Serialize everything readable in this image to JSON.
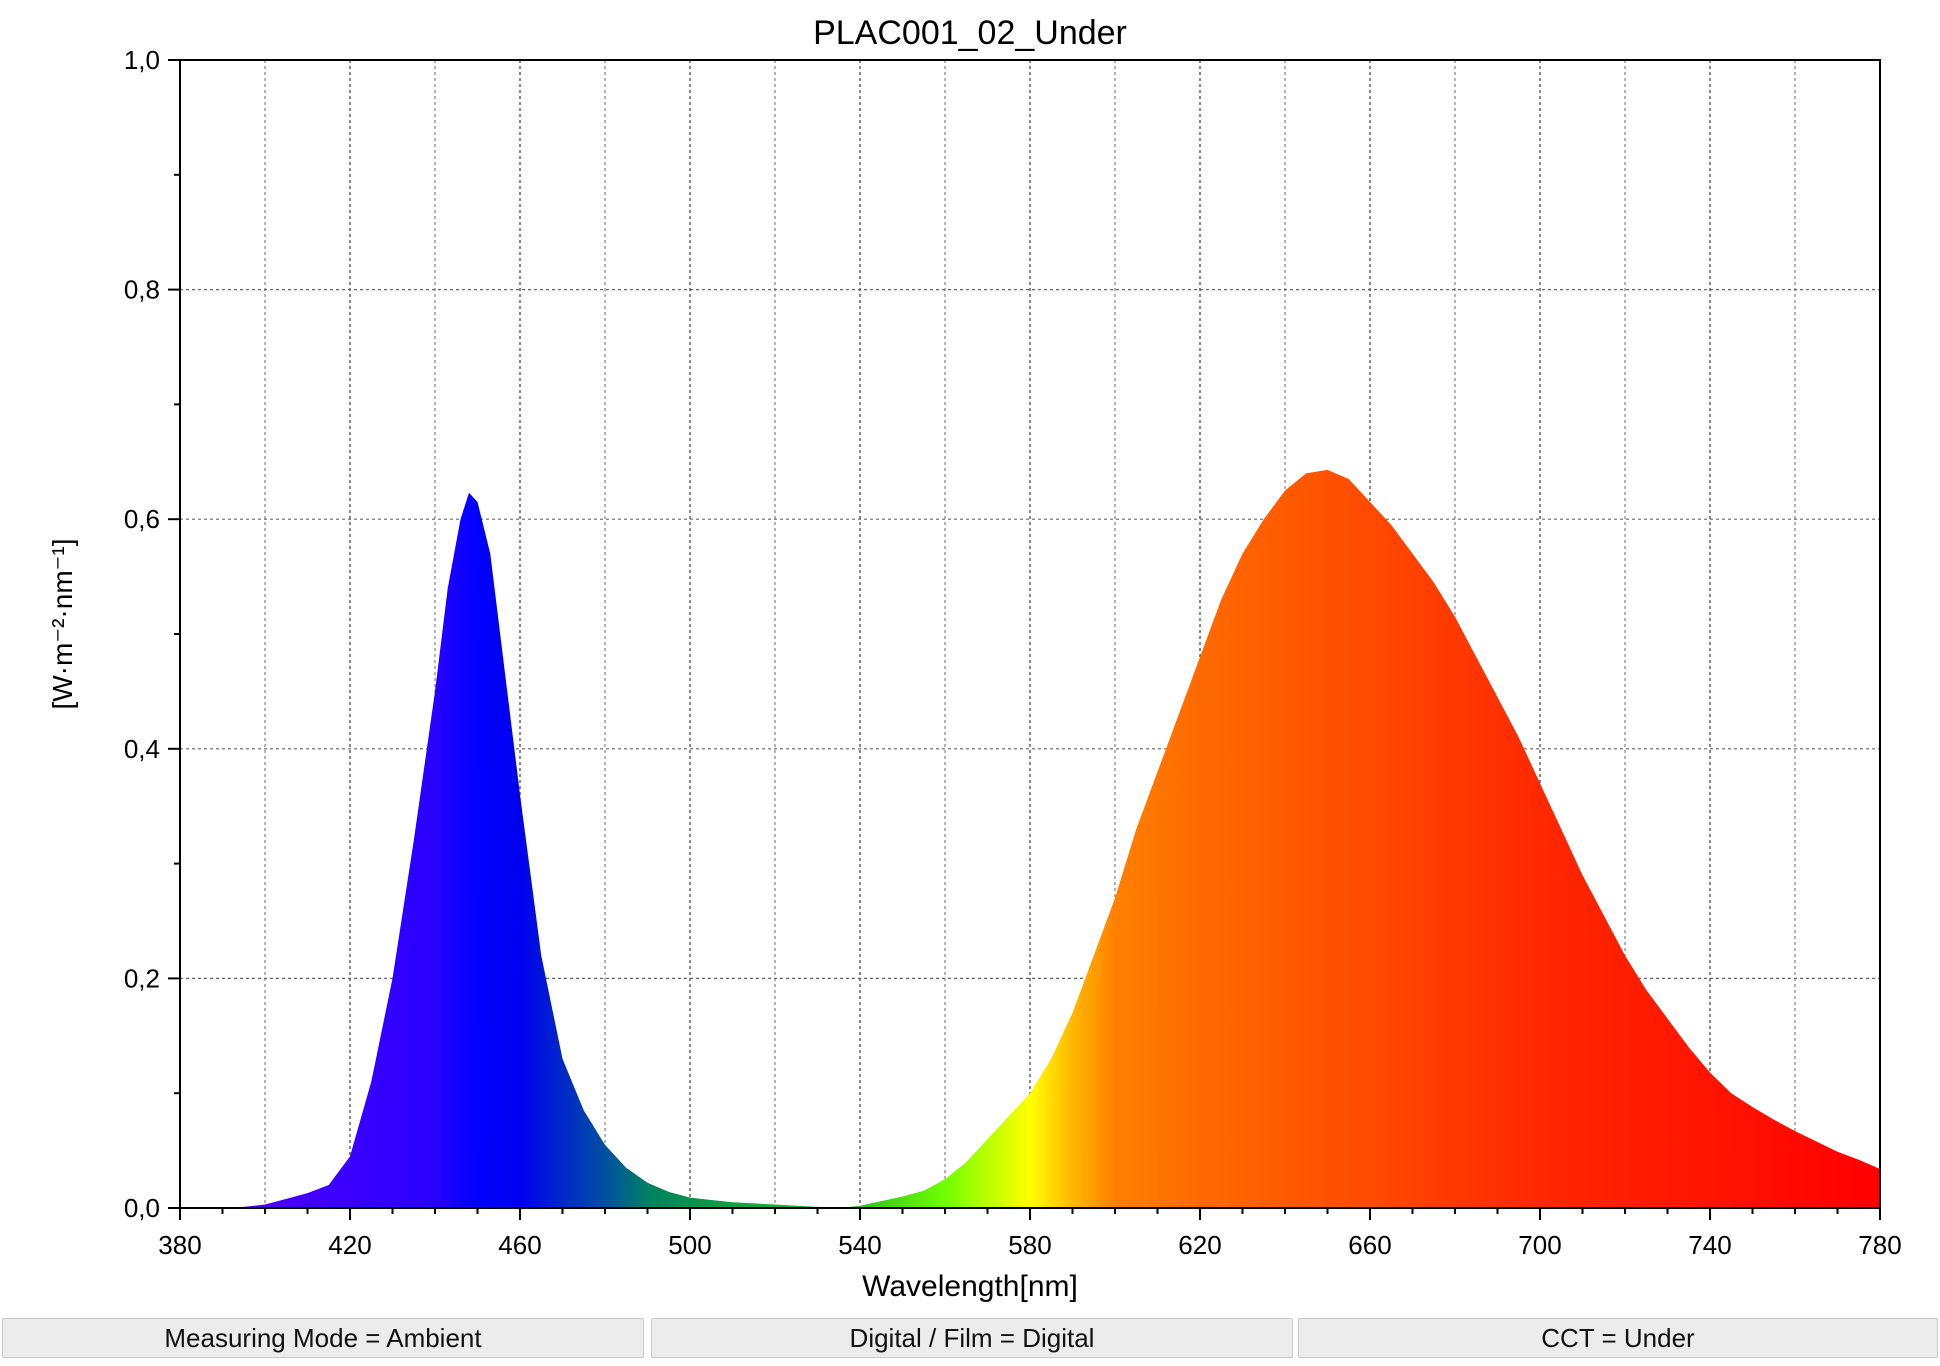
{
  "chart_data": {
    "type": "area",
    "title": "PLAC001_02_Under",
    "xlabel": "Wavelength[nm]",
    "ylabel": "[W·m⁻²·nm⁻¹]",
    "xlim": [
      380,
      780
    ],
    "ylim": [
      0,
      1.0
    ],
    "x_ticks": [
      "380",
      "420",
      "460",
      "500",
      "540",
      "580",
      "620",
      "660",
      "700",
      "740",
      "780"
    ],
    "y_ticks": [
      "0,0",
      "0,2",
      "0,4",
      "0,6",
      "0,8",
      "1,0"
    ],
    "grid": true,
    "fill": "visible-spectrum gradient",
    "series": [
      {
        "x": [
          380,
          385,
          390,
          395,
          400,
          405,
          410,
          415,
          420,
          425,
          430,
          435,
          440,
          443,
          446,
          448,
          450,
          453,
          456,
          460,
          465,
          470,
          475,
          480,
          485,
          490,
          495,
          500,
          505,
          510,
          515,
          520,
          525,
          530,
          535,
          540,
          545,
          550,
          555,
          560,
          565,
          570,
          575,
          580,
          585,
          590,
          595,
          600,
          605,
          610,
          615,
          620,
          625,
          630,
          635,
          640,
          645,
          650,
          655,
          660,
          665,
          670,
          675,
          680,
          685,
          690,
          695,
          700,
          705,
          710,
          715,
          720,
          725,
          730,
          735,
          740,
          745,
          750,
          755,
          760,
          765,
          770,
          775,
          780
        ],
        "y": [
          0.0,
          0.0,
          0.0,
          0.001,
          0.003,
          0.008,
          0.013,
          0.02,
          0.045,
          0.11,
          0.2,
          0.32,
          0.45,
          0.54,
          0.6,
          0.623,
          0.615,
          0.57,
          0.48,
          0.36,
          0.22,
          0.13,
          0.085,
          0.055,
          0.035,
          0.022,
          0.014,
          0.009,
          0.007,
          0.005,
          0.004,
          0.003,
          0.002,
          0.001,
          0.0,
          0.002,
          0.006,
          0.01,
          0.015,
          0.025,
          0.04,
          0.06,
          0.08,
          0.1,
          0.13,
          0.17,
          0.22,
          0.27,
          0.33,
          0.38,
          0.43,
          0.48,
          0.53,
          0.57,
          0.6,
          0.625,
          0.64,
          0.643,
          0.635,
          0.615,
          0.595,
          0.57,
          0.545,
          0.515,
          0.48,
          0.445,
          0.41,
          0.37,
          0.33,
          0.29,
          0.255,
          0.22,
          0.19,
          0.165,
          0.14,
          0.118,
          0.1,
          0.088,
          0.077,
          0.067,
          0.058,
          0.049,
          0.042,
          0.034
        ]
      }
    ]
  },
  "status": {
    "measuring_mode": "Measuring Mode = Ambient",
    "digital_film": "Digital / Film = Digital",
    "cct": "CCT = Under"
  }
}
